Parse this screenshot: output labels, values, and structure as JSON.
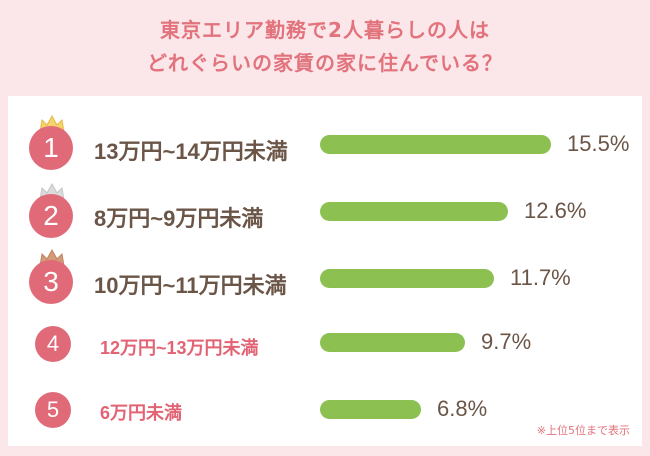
{
  "title_line1": "東京エリア勤務で2人暮らしの人は",
  "title_line2": "どれぐらいの家賃の家に住んでいる？",
  "footnote": "※上位5位まで表示",
  "colors": {
    "background": "#fbe6e9",
    "title": "#e2727c",
    "rank_circle": "#e06a78",
    "bar": "#8cc152",
    "crown_gold": "#f3d36a",
    "crown_silver": "#d9d9d9",
    "crown_bronze": "#d49b78"
  },
  "rankings": [
    {
      "rank": "1",
      "label": "13万円~14万円未満",
      "value_text": "15.5%",
      "crown": "gold-crown-icon"
    },
    {
      "rank": "2",
      "label": "8万円~9万円未満",
      "value_text": "12.6%",
      "crown": "silver-crown-icon"
    },
    {
      "rank": "3",
      "label": "10万円~11万円未満",
      "value_text": "11.7%",
      "crown": "bronze-crown-icon"
    },
    {
      "rank": "4",
      "label": "12万円~13万円未満",
      "value_text": "9.7%"
    },
    {
      "rank": "5",
      "label": "6万円未満",
      "value_text": "6.8%"
    }
  ],
  "chart_data": {
    "type": "bar",
    "orientation": "horizontal",
    "categories": [
      "13万円~14万円未満",
      "8万円~9万円未満",
      "10万円~11万円未満",
      "12万円~13万円未満",
      "6万円未満"
    ],
    "values": [
      15.5,
      12.6,
      11.7,
      9.7,
      6.8
    ]
  }
}
